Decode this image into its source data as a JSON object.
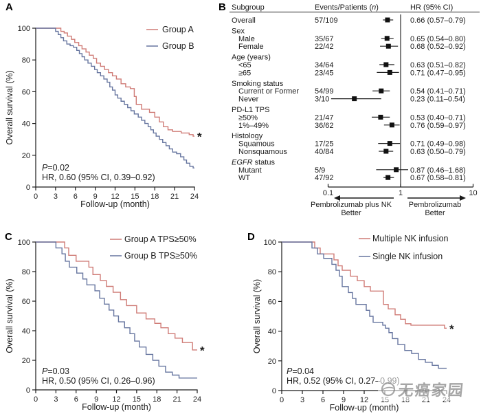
{
  "watermark": {
    "text": "无癌家园"
  },
  "chart_data": [
    {
      "panel_label": "A",
      "type": "line",
      "subtype": "kaplan-meier-step",
      "xlabel": "Follow-up (month)",
      "ylabel": "Overall survival (%)",
      "xlim": [
        0,
        24
      ],
      "xticks": [
        0,
        3,
        6,
        9,
        12,
        15,
        18,
        21,
        24
      ],
      "ylim": [
        0,
        100
      ],
      "yticks": [
        0,
        20,
        40,
        60,
        80,
        100
      ],
      "legend_position": "top-right",
      "stats": {
        "p_italic": "P",
        "p_rest": "=0.02",
        "hr_line": "HR, 0.60 (95% CI, 0.39–0.92)"
      },
      "series": [
        {
          "name": "Group A",
          "color": "#cf7b76",
          "end_star": true,
          "steps": [
            [
              3.8,
              98
            ],
            [
              4.3,
              97
            ],
            [
              4.8,
              95
            ],
            [
              5.4,
              93
            ],
            [
              5.9,
              91
            ],
            [
              6.5,
              89
            ],
            [
              7,
              87
            ],
            [
              7.6,
              85
            ],
            [
              8.1,
              83
            ],
            [
              8.7,
              81
            ],
            [
              9.2,
              78
            ],
            [
              9.8,
              76
            ],
            [
              10.4,
              74
            ],
            [
              11,
              72
            ],
            [
              11.6,
              70
            ],
            [
              12.2,
              68
            ],
            [
              12.9,
              65
            ],
            [
              13.6,
              63
            ],
            [
              14.3,
              62
            ],
            [
              14.9,
              57
            ],
            [
              15.2,
              52
            ],
            [
              16,
              49
            ],
            [
              17.2,
              47
            ],
            [
              18,
              44
            ],
            [
              18.7,
              41
            ],
            [
              19.3,
              38
            ],
            [
              20,
              36
            ],
            [
              20.7,
              35
            ],
            [
              22,
              34
            ],
            [
              23.2,
              33
            ],
            [
              23.8,
              32
            ]
          ]
        },
        {
          "name": "Group B",
          "color": "#66759f",
          "steps": [
            [
              3,
              98
            ],
            [
              3.4,
              96
            ],
            [
              3.8,
              94
            ],
            [
              4.2,
              92
            ],
            [
              4.7,
              90
            ],
            [
              5.2,
              89
            ],
            [
              5.7,
              88
            ],
            [
              6.2,
              86
            ],
            [
              6.6,
              84
            ],
            [
              7,
              82
            ],
            [
              7.4,
              80
            ],
            [
              7.9,
              78
            ],
            [
              8.4,
              76
            ],
            [
              8.9,
              74
            ],
            [
              9.3,
              72
            ],
            [
              9.8,
              70
            ],
            [
              10.3,
              68
            ],
            [
              10.8,
              66
            ],
            [
              11.2,
              63
            ],
            [
              11.6,
              61
            ],
            [
              12,
              58
            ],
            [
              12.4,
              56
            ],
            [
              12.9,
              54
            ],
            [
              13.4,
              52
            ],
            [
              13.9,
              50
            ],
            [
              14.4,
              48
            ],
            [
              14.9,
              46
            ],
            [
              15.5,
              44
            ],
            [
              16,
              42
            ],
            [
              16.5,
              40
            ],
            [
              17,
              38
            ],
            [
              17.4,
              36
            ],
            [
              17.8,
              34
            ],
            [
              18.2,
              32
            ],
            [
              18.7,
              30
            ],
            [
              19.2,
              28
            ],
            [
              19.7,
              26
            ],
            [
              20.2,
              24
            ],
            [
              20.7,
              22
            ],
            [
              21.3,
              21
            ],
            [
              21.9,
              19
            ],
            [
              22.4,
              17
            ],
            [
              22.8,
              15
            ],
            [
              23.3,
              13
            ],
            [
              23.8,
              12
            ]
          ]
        }
      ]
    },
    {
      "panel_label": "B",
      "type": "forest",
      "columns": [
        "Subgroup",
        "Events/Patients (n)",
        "HR (95% CI)"
      ],
      "columns_italic_part": "n",
      "axis": {
        "scale": "log",
        "ticks": [
          "0.1",
          "1",
          "10"
        ],
        "tick_values": [
          0.1,
          1,
          10
        ],
        "ref_line": 1
      },
      "footer": {
        "left": [
          "Pembrolizumab plus NK",
          "Better"
        ],
        "right": [
          "Pembrolizumab",
          "Better"
        ]
      },
      "rows": [
        {
          "label": "Overall",
          "events": "57/109",
          "hr": 0.66,
          "lo": 0.57,
          "hi": 0.79,
          "hr_text": "0.66 (0.57–0.79)"
        },
        {
          "label": "Sex",
          "header": true
        },
        {
          "label": "Male",
          "indent": 1,
          "events": "35/67",
          "hr": 0.65,
          "lo": 0.54,
          "hi": 0.8,
          "hr_text": "0.65 (0.54–0.80)"
        },
        {
          "label": "Female",
          "indent": 1,
          "events": "22/42",
          "hr": 0.68,
          "lo": 0.52,
          "hi": 0.92,
          "hr_text": "0.68 (0.52–0.92)"
        },
        {
          "label": "Age (years)",
          "header": true
        },
        {
          "label": "<65",
          "indent": 1,
          "events": "34/64",
          "hr": 0.63,
          "lo": 0.51,
          "hi": 0.82,
          "hr_text": "0.63 (0.51–0.82)"
        },
        {
          "label": "≥65",
          "indent": 1,
          "events": "23/45",
          "hr": 0.71,
          "lo": 0.47,
          "hi": 0.95,
          "hr_text": "0.71 (0.47–0.95)"
        },
        {
          "label": "Smoking status",
          "header": true
        },
        {
          "label": "Current or Former",
          "indent": 1,
          "events": "54/99",
          "hr": 0.54,
          "lo": 0.41,
          "hi": 0.71,
          "hr_text": "0.54 (0.41–0.71)"
        },
        {
          "label": "Never",
          "indent": 1,
          "events": "3/10",
          "hr": 0.23,
          "lo": 0.11,
          "hi": 0.54,
          "hr_text": "0.23 (0.11–0.54)"
        },
        {
          "label": "PD-L1 TPS",
          "header": true
        },
        {
          "label": "≥50%",
          "indent": 1,
          "events": "21/47",
          "hr": 0.53,
          "lo": 0.4,
          "hi": 0.71,
          "hr_text": "0.53 (0.40–0.71)"
        },
        {
          "label": "1%–49%",
          "indent": 1,
          "events": "36/62",
          "hr": 0.76,
          "lo": 0.59,
          "hi": 0.97,
          "hr_text": "0.76 (0.59–0.97)"
        },
        {
          "label": "Histology",
          "header": true
        },
        {
          "label": "Squamous",
          "indent": 1,
          "events": "17/25",
          "hr": 0.71,
          "lo": 0.49,
          "hi": 0.98,
          "hr_text": "0.71 (0.49–0.98)"
        },
        {
          "label": "Nonsquamous",
          "indent": 1,
          "events": "40/84",
          "hr": 0.63,
          "lo": 0.5,
          "hi": 0.79,
          "hr_text": "0.63 (0.50–0.79)"
        },
        {
          "label": "EGFR status",
          "header": true,
          "label_italic": "EGFR",
          "label_rest": " status"
        },
        {
          "label": "Mutant",
          "indent": 1,
          "events": "5/9",
          "hr": 0.87,
          "lo": 0.46,
          "hi": 1.68,
          "hr_text": "0.87 (0.46–1.68)"
        },
        {
          "label": "WT",
          "indent": 1,
          "events": "47/92",
          "hr": 0.67,
          "lo": 0.58,
          "hi": 0.81,
          "hr_text": "0.67 (0.58–0.81)"
        }
      ]
    },
    {
      "panel_label": "C",
      "type": "line",
      "subtype": "kaplan-meier-step",
      "xlabel": "Follow-up (month)",
      "ylabel": "Overall survival (%)",
      "xlim": [
        0,
        24
      ],
      "xticks": [
        0,
        3,
        6,
        9,
        12,
        15,
        18,
        21,
        24
      ],
      "ylim": [
        0,
        100
      ],
      "yticks": [
        0,
        20,
        40,
        60,
        80,
        100
      ],
      "legend_position": "top-right",
      "stats": {
        "p_italic": "P",
        "p_rest": "=0.03",
        "hr_line": "HR, 0.50 (95% CI, 0.26–0.96)"
      },
      "series": [
        {
          "name": "Group A TPS≥50%",
          "color": "#cf7b76",
          "end_star": true,
          "steps": [
            [
              4.3,
              96
            ],
            [
              4.9,
              91
            ],
            [
              6,
              87
            ],
            [
              7.9,
              83
            ],
            [
              8.5,
              78
            ],
            [
              9.6,
              74
            ],
            [
              10.5,
              70
            ],
            [
              11.5,
              66
            ],
            [
              12.6,
              61
            ],
            [
              13.5,
              57
            ],
            [
              15,
              52
            ],
            [
              16.4,
              48
            ],
            [
              17.7,
              45
            ],
            [
              18.6,
              42
            ],
            [
              19.7,
              38
            ],
            [
              20.7,
              35
            ],
            [
              21.8,
              32
            ],
            [
              23.3,
              27
            ]
          ]
        },
        {
          "name": "Group B TPS≥50%",
          "color": "#66759f",
          "steps": [
            [
              3,
              96
            ],
            [
              3.9,
              92
            ],
            [
              4.4,
              87
            ],
            [
              5,
              83
            ],
            [
              6.1,
              79
            ],
            [
              7,
              75
            ],
            [
              7.6,
              71
            ],
            [
              8.8,
              67
            ],
            [
              9.5,
              62
            ],
            [
              10.2,
              58
            ],
            [
              10.9,
              54
            ],
            [
              11.6,
              50
            ],
            [
              12.3,
              46
            ],
            [
              13.2,
              42
            ],
            [
              14,
              38
            ],
            [
              14.7,
              33
            ],
            [
              15.4,
              29
            ],
            [
              16.4,
              24
            ],
            [
              17.4,
              20
            ],
            [
              18.3,
              16
            ],
            [
              19.3,
              12
            ],
            [
              20.3,
              10
            ],
            [
              21.3,
              8
            ]
          ]
        }
      ]
    },
    {
      "panel_label": "D",
      "type": "line",
      "subtype": "kaplan-meier-step",
      "xlabel": "Follow-up (month)",
      "ylabel": "Overall survival (%)",
      "xlim": [
        0,
        24
      ],
      "xticks": [
        0,
        3,
        6,
        9,
        12,
        15,
        18,
        21,
        24
      ],
      "ylim": [
        0,
        100
      ],
      "yticks": [
        0,
        20,
        40,
        60,
        80,
        100
      ],
      "legend_position": "top-right",
      "stats": {
        "p_italic": "P",
        "p_rest": "=0.04",
        "hr_line": "HR, 0.52 (95% CI, 0.27–0.99)"
      },
      "series": [
        {
          "name": "Multiple NK infusion",
          "color": "#cf7b76",
          "end_star": true,
          "steps": [
            [
              4.8,
              96
            ],
            [
              5.6,
              92
            ],
            [
              7.6,
              88
            ],
            [
              8.2,
              84
            ],
            [
              8.8,
              81
            ],
            [
              10,
              77
            ],
            [
              11,
              74
            ],
            [
              12,
              70
            ],
            [
              12.9,
              67
            ],
            [
              14.8,
              58
            ],
            [
              15.5,
              55
            ],
            [
              16.5,
              51
            ],
            [
              17.3,
              48
            ],
            [
              18,
              45
            ],
            [
              18.8,
              44
            ],
            [
              23.7,
              42
            ]
          ]
        },
        {
          "name": "Single NK infusion",
          "color": "#66759f",
          "steps": [
            [
              4.4,
              96
            ],
            [
              5.2,
              92
            ],
            [
              6.1,
              89
            ],
            [
              7.3,
              85
            ],
            [
              7.9,
              81
            ],
            [
              8.4,
              77
            ],
            [
              8.8,
              70
            ],
            [
              9.7,
              66
            ],
            [
              10.3,
              62
            ],
            [
              10.8,
              58
            ],
            [
              12.3,
              54
            ],
            [
              12.8,
              50
            ],
            [
              13.3,
              46
            ],
            [
              14.7,
              44
            ],
            [
              15.1,
              42
            ],
            [
              15.6,
              39
            ],
            [
              16.1,
              35
            ],
            [
              16.9,
              31
            ],
            [
              17.9,
              27
            ],
            [
              18.9,
              25
            ],
            [
              19.9,
              21
            ],
            [
              20.9,
              19
            ],
            [
              21.9,
              17
            ],
            [
              22.8,
              15
            ]
          ]
        }
      ]
    }
  ]
}
